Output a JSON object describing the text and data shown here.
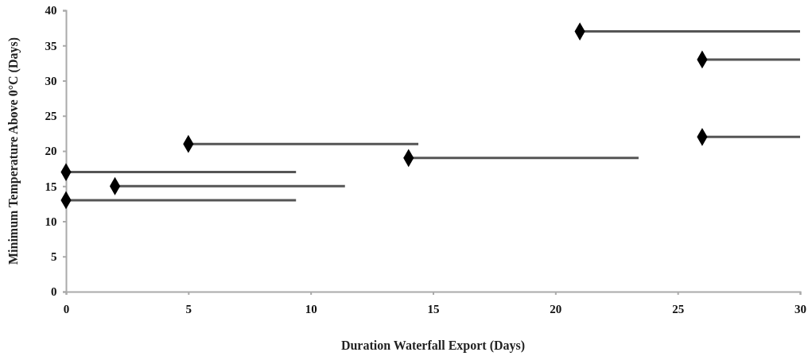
{
  "chart_data": {
    "type": "scatter",
    "xlabel": "Duration Waterfall Export (Days)",
    "ylabel": "Minimum Temperature Above 0°C (Days)",
    "x": [
      0,
      0,
      2,
      5,
      14,
      21,
      26,
      26
    ],
    "series": [
      {
        "color": "#000000",
        "values": [
          17,
          13,
          15,
          21,
          19,
          37,
          33,
          22
        ],
        "xerrors": [
          [
            0,
            9.4
          ],
          [
            0,
            9.4
          ],
          [
            2,
            11.4
          ],
          [
            5,
            14.4
          ],
          [
            14,
            23.4
          ],
          [
            21,
            30
          ],
          [
            26,
            30
          ],
          [
            26,
            30
          ]
        ]
      }
    ],
    "marker": "diamond",
    "grid": false,
    "xlim": [
      0,
      30
    ],
    "xticks": [
      0,
      5,
      10,
      15,
      20,
      25,
      30
    ],
    "ylim": [
      0,
      40
    ],
    "yticks": [
      0,
      5,
      10,
      15,
      20,
      25,
      30,
      35,
      40
    ]
  }
}
